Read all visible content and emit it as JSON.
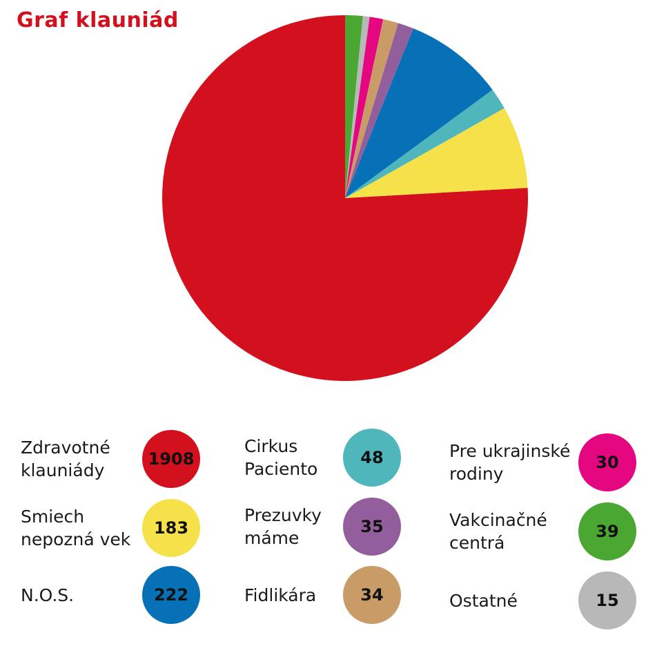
{
  "chart_data": {
    "type": "pie",
    "title": "Graf klauniád",
    "slices": [
      {
        "label": "Zdravotné klauniády",
        "label_lines": [
          "Zdravotné",
          "klauniády"
        ],
        "value": 1908,
        "color": "#d3111e"
      },
      {
        "label": "Smiech nepozná vek",
        "label_lines": [
          "Smiech",
          "nepozná vek"
        ],
        "value": 183,
        "color": "#f5e14a"
      },
      {
        "label": "Cirkus Paciento",
        "label_lines": [
          "Cirkus",
          "Paciento"
        ],
        "value": 48,
        "color": "#4fb7bb"
      },
      {
        "label": "N.O.S.",
        "label_lines": [
          "N.O.S."
        ],
        "value": 222,
        "color": "#0671b6"
      },
      {
        "label": "Prezuvky máme",
        "label_lines": [
          "Prezuvky",
          "máme"
        ],
        "value": 35,
        "color": "#925e9c"
      },
      {
        "label": "Fidlikára",
        "label_lines": [
          "Fidlikára"
        ],
        "value": 34,
        "color": "#c99c67"
      },
      {
        "label": "Pre ukrajinské rodiny",
        "label_lines": [
          "Pre ukrajinské",
          "rodiny"
        ],
        "value": 30,
        "color": "#e4077f"
      },
      {
        "label": "Ostatné",
        "label_lines": [
          "Ostatné"
        ],
        "value": 15,
        "color": "#b8b8b8"
      },
      {
        "label": "Vakcinačné centrá",
        "label_lines": [
          "Vakcinačné",
          "centrá"
        ],
        "value": 39,
        "color": "#4aa832"
      }
    ],
    "pie_order": [
      "Zdravotné klauniády",
      "Vakcinačné centrá",
      "Ostatné",
      "Pre ukrajinské rodiny",
      "Fidlikára",
      "Prezuvky máme",
      "N.O.S.",
      "Cirkus Paciento",
      "Smiech nepozná vek"
    ],
    "legend_order": [
      "Zdravotné klauniády",
      "Smiech nepozná vek",
      "N.O.S.",
      "Cirkus Paciento",
      "Prezuvky máme",
      "Fidlikára",
      "Pre ukrajinské rodiny",
      "Vakcinačné centrá",
      "Ostatné"
    ],
    "legend_placement": "bottom"
  }
}
